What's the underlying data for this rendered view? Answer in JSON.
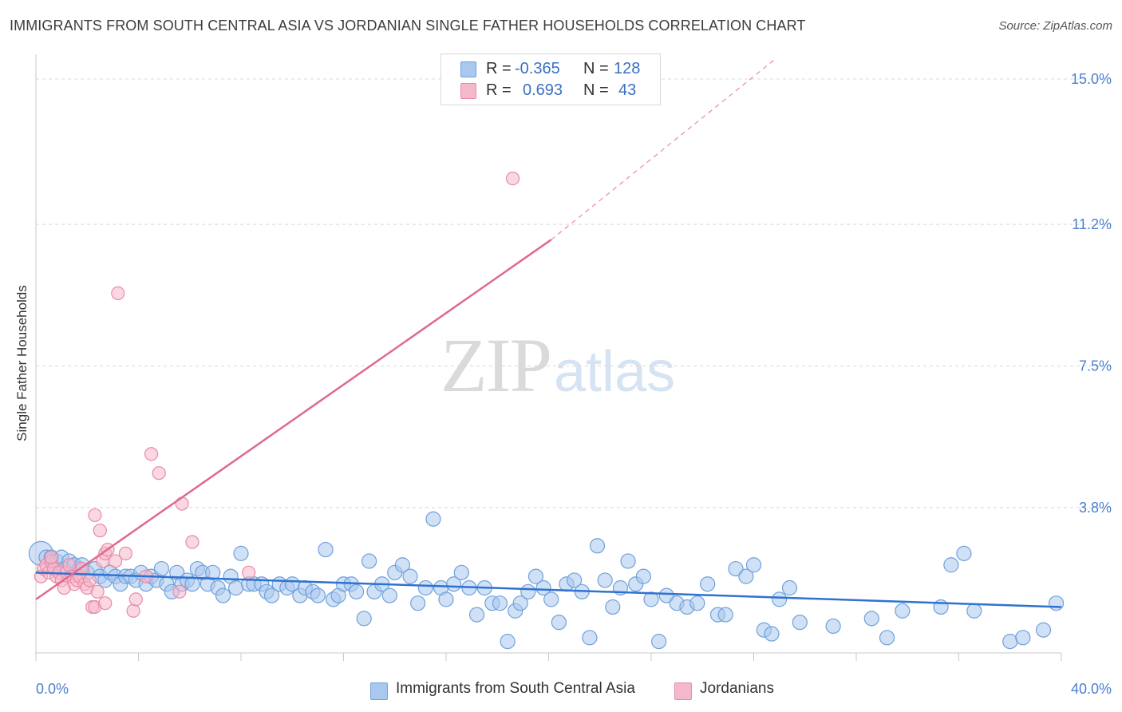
{
  "title": "IMMIGRANTS FROM SOUTH CENTRAL ASIA VS JORDANIAN SINGLE FATHER HOUSEHOLDS CORRELATION CHART",
  "source": "Source: ZipAtlas.com",
  "watermark": {
    "zip": "ZIP",
    "atlas": "atlas"
  },
  "legend": {
    "r_label": "R =",
    "n_label": "N =",
    "rows": [
      {
        "r": "-0.365",
        "n": "128",
        "color": "#a9c8ef"
      },
      {
        "r": "0.693",
        "n": "43",
        "color": "#f5b8cb"
      }
    ]
  },
  "colors": {
    "blue_fill": "#a9c8ef",
    "blue_stroke": "#6fa0dc",
    "blue_line": "#2f72d0",
    "pink_fill": "#f5b8cb",
    "pink_stroke": "#e88aa8",
    "pink_line": "#e0698f",
    "grid": "#d8d8d8",
    "tick_text": "#4a7fd0"
  },
  "chart_data": {
    "type": "scatter",
    "title": "IMMIGRANTS FROM SOUTH CENTRAL ASIA VS JORDANIAN SINGLE FATHER HOUSEHOLDS CORRELATION CHART",
    "xlabel": "",
    "ylabel": "Single Father Households",
    "xlim": [
      0,
      40
    ],
    "ylim": [
      0,
      15.5
    ],
    "x_tick_labels": [
      "0.0%",
      "40.0%"
    ],
    "y_ticks": [
      3.8,
      7.5,
      11.2,
      15.0
    ],
    "y_tick_labels": [
      "3.8%",
      "7.5%",
      "11.2%",
      "15.0%"
    ],
    "grid": "horizontal dashed",
    "legend_position": "top-center",
    "series": [
      {
        "name": "Immigrants from South Central Asia",
        "color": "#a9c8ef",
        "trend": {
          "x": [
            0,
            40
          ],
          "y": [
            2.1,
            1.2
          ],
          "style": "solid"
        },
        "points": [
          [
            0.2,
            2.6
          ],
          [
            0.4,
            2.5
          ],
          [
            0.6,
            2.5
          ],
          [
            0.8,
            2.4
          ],
          [
            1.0,
            2.5
          ],
          [
            1.1,
            2.2
          ],
          [
            1.3,
            2.4
          ],
          [
            1.5,
            2.3
          ],
          [
            1.7,
            2.2
          ],
          [
            1.8,
            2.3
          ],
          [
            2.0,
            2.1
          ],
          [
            2.3,
            2.2
          ],
          [
            2.5,
            2.0
          ],
          [
            2.7,
            1.9
          ],
          [
            2.9,
            2.1
          ],
          [
            3.1,
            2.0
          ],
          [
            3.3,
            1.8
          ],
          [
            3.5,
            2.0
          ],
          [
            3.7,
            2.0
          ],
          [
            3.9,
            1.9
          ],
          [
            4.1,
            2.1
          ],
          [
            4.3,
            1.8
          ],
          [
            4.5,
            2.0
          ],
          [
            4.7,
            1.9
          ],
          [
            4.9,
            2.2
          ],
          [
            5.1,
            1.8
          ],
          [
            5.3,
            1.6
          ],
          [
            5.5,
            2.1
          ],
          [
            5.7,
            1.8
          ],
          [
            5.9,
            1.9
          ],
          [
            6.1,
            1.8
          ],
          [
            6.3,
            2.2
          ],
          [
            6.5,
            2.1
          ],
          [
            6.7,
            1.8
          ],
          [
            6.9,
            2.1
          ],
          [
            7.1,
            1.7
          ],
          [
            7.3,
            1.5
          ],
          [
            7.6,
            2.0
          ],
          [
            7.8,
            1.7
          ],
          [
            8.0,
            2.6
          ],
          [
            8.3,
            1.8
          ],
          [
            8.5,
            1.8
          ],
          [
            8.8,
            1.8
          ],
          [
            9.0,
            1.6
          ],
          [
            9.2,
            1.5
          ],
          [
            9.5,
            1.8
          ],
          [
            9.8,
            1.7
          ],
          [
            10.0,
            1.8
          ],
          [
            10.3,
            1.5
          ],
          [
            10.5,
            1.7
          ],
          [
            10.8,
            1.6
          ],
          [
            11.0,
            1.5
          ],
          [
            11.3,
            2.7
          ],
          [
            11.6,
            1.4
          ],
          [
            11.8,
            1.5
          ],
          [
            12.0,
            1.8
          ],
          [
            12.3,
            1.8
          ],
          [
            12.5,
            1.6
          ],
          [
            12.8,
            0.9
          ],
          [
            13.0,
            2.4
          ],
          [
            13.2,
            1.6
          ],
          [
            13.5,
            1.8
          ],
          [
            13.8,
            1.5
          ],
          [
            14.0,
            2.1
          ],
          [
            14.3,
            2.3
          ],
          [
            14.6,
            2.0
          ],
          [
            14.9,
            1.3
          ],
          [
            15.2,
            1.7
          ],
          [
            15.5,
            3.5
          ],
          [
            15.8,
            1.7
          ],
          [
            16.0,
            1.4
          ],
          [
            16.3,
            1.8
          ],
          [
            16.6,
            2.1
          ],
          [
            16.9,
            1.7
          ],
          [
            17.2,
            1.0
          ],
          [
            17.5,
            1.7
          ],
          [
            17.8,
            1.3
          ],
          [
            18.1,
            1.3
          ],
          [
            18.4,
            0.3
          ],
          [
            18.7,
            1.1
          ],
          [
            18.9,
            1.3
          ],
          [
            19.2,
            1.6
          ],
          [
            19.5,
            2.0
          ],
          [
            19.8,
            1.7
          ],
          [
            20.1,
            1.4
          ],
          [
            20.4,
            0.8
          ],
          [
            20.7,
            1.8
          ],
          [
            21.0,
            1.9
          ],
          [
            21.3,
            1.6
          ],
          [
            21.6,
            0.4
          ],
          [
            21.9,
            2.8
          ],
          [
            22.2,
            1.9
          ],
          [
            22.5,
            1.2
          ],
          [
            22.8,
            1.7
          ],
          [
            23.1,
            2.4
          ],
          [
            23.4,
            1.8
          ],
          [
            23.7,
            2.0
          ],
          [
            24.0,
            1.4
          ],
          [
            24.3,
            0.3
          ],
          [
            24.6,
            1.5
          ],
          [
            25.0,
            1.3
          ],
          [
            25.4,
            1.2
          ],
          [
            25.8,
            1.3
          ],
          [
            26.2,
            1.8
          ],
          [
            26.6,
            1.0
          ],
          [
            26.9,
            1.0
          ],
          [
            27.3,
            2.2
          ],
          [
            27.7,
            2.0
          ],
          [
            28.0,
            2.3
          ],
          [
            28.4,
            0.6
          ],
          [
            28.7,
            0.5
          ],
          [
            29.0,
            1.4
          ],
          [
            29.4,
            1.7
          ],
          [
            29.8,
            0.8
          ],
          [
            31.1,
            0.7
          ],
          [
            32.6,
            0.9
          ],
          [
            33.2,
            0.4
          ],
          [
            33.8,
            1.1
          ],
          [
            35.3,
            1.2
          ],
          [
            35.7,
            2.3
          ],
          [
            36.2,
            2.6
          ],
          [
            36.6,
            1.1
          ],
          [
            38.0,
            0.3
          ],
          [
            38.5,
            0.4
          ],
          [
            39.3,
            0.6
          ],
          [
            39.8,
            1.3
          ]
        ]
      },
      {
        "name": "Jordanians",
        "color": "#f5b8cb",
        "trend": {
          "x": [
            0,
            20.1
          ],
          "y": [
            1.4,
            10.8
          ],
          "style": "solid",
          "extended_to": [
            28.8,
            15.5
          ],
          "extended_style": "dashed"
        },
        "points": [
          [
            0.2,
            2.0
          ],
          [
            0.3,
            2.2
          ],
          [
            0.4,
            2.3
          ],
          [
            0.5,
            2.1
          ],
          [
            0.6,
            2.4
          ],
          [
            0.7,
            2.2
          ],
          [
            0.8,
            2.0
          ],
          [
            0.9,
            2.1
          ],
          [
            1.0,
            1.9
          ],
          [
            1.1,
            1.7
          ],
          [
            1.2,
            2.1
          ],
          [
            1.3,
            2.3
          ],
          [
            1.4,
            2.0
          ],
          [
            1.5,
            1.8
          ],
          [
            1.6,
            1.9
          ],
          [
            1.7,
            2.0
          ],
          [
            1.8,
            2.2
          ],
          [
            1.9,
            1.8
          ],
          [
            2.0,
            1.7
          ],
          [
            2.1,
            1.9
          ],
          [
            2.2,
            1.2
          ],
          [
            2.3,
            1.2
          ],
          [
            2.3,
            3.6
          ],
          [
            2.4,
            1.6
          ],
          [
            2.5,
            3.2
          ],
          [
            2.6,
            2.4
          ],
          [
            2.7,
            1.3
          ],
          [
            2.7,
            2.6
          ],
          [
            2.8,
            2.7
          ],
          [
            3.1,
            2.4
          ],
          [
            3.2,
            9.4
          ],
          [
            3.5,
            2.6
          ],
          [
            3.8,
            1.1
          ],
          [
            3.9,
            1.4
          ],
          [
            4.3,
            2.0
          ],
          [
            4.5,
            5.2
          ],
          [
            4.8,
            4.7
          ],
          [
            5.6,
            1.6
          ],
          [
            5.7,
            3.9
          ],
          [
            6.1,
            2.9
          ],
          [
            8.3,
            2.1
          ],
          [
            18.6,
            12.4
          ],
          [
            0.6,
            2.5
          ]
        ]
      }
    ]
  },
  "bottom_legend": [
    {
      "label": "Immigrants from South Central Asia",
      "color": "#a9c8ef"
    },
    {
      "label": "Jordanians",
      "color": "#f5b8cb"
    }
  ]
}
